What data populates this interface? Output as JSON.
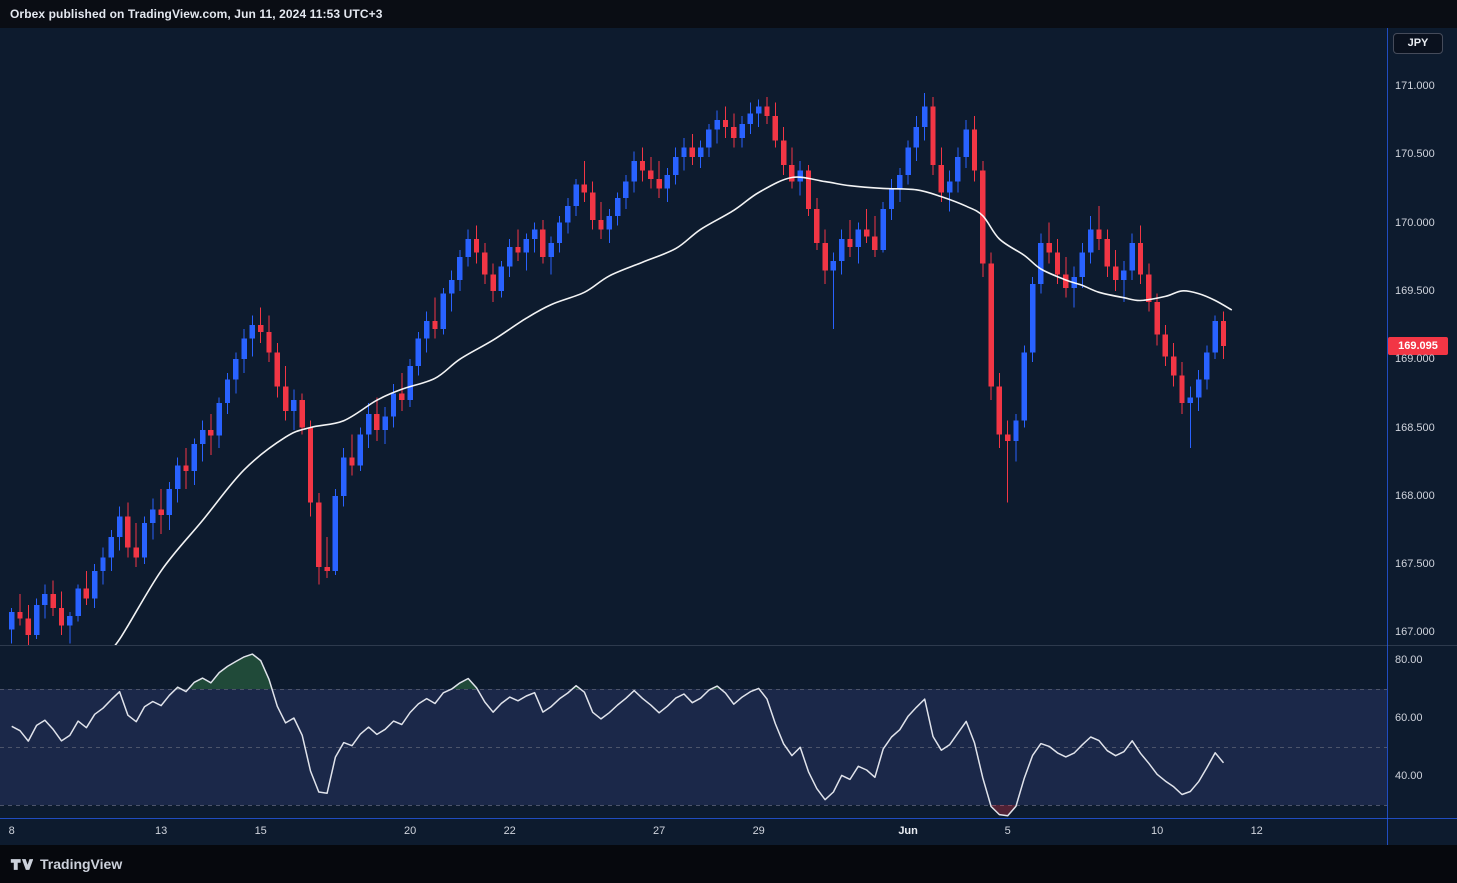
{
  "banner": {
    "text": "Orbex published on TradingView.com, Jun 11, 2024 11:53 UTC+3"
  },
  "ui": {
    "currency_badge": "JPY",
    "last_price_label": "169.095",
    "attribution_brand": "TradingView"
  },
  "colors": {
    "background": "#0d1b2e",
    "up": "#2962ff",
    "down": "#f23645",
    "ma": "#ffffff",
    "rsi": "#e0e3eb",
    "accent_line": "#2962ff",
    "price_badge": "#f23645",
    "band": "rgba(122,134,255,0.13)",
    "dashed": "#4c546a",
    "overbought_fill": "rgba(76,175,80,0.32)",
    "oversold_fill": "rgba(242,54,69,0.30)"
  },
  "chart_data": [
    {
      "type": "candlestick",
      "name": "price",
      "currency": "JPY",
      "last_price": 169.095,
      "ylim": [
        166.9,
        171.35
      ],
      "grid": false,
      "y_axis": {
        "labels": [
          {
            "text": "171.000",
            "value": 171.0
          },
          {
            "text": "170.500",
            "value": 170.5
          },
          {
            "text": "170.000",
            "value": 170.0
          },
          {
            "text": "169.500",
            "value": 169.5
          },
          {
            "text": "169.000",
            "value": 169.0
          },
          {
            "text": "168.500",
            "value": 168.5
          },
          {
            "text": "168.000",
            "value": 168.0
          },
          {
            "text": "167.500",
            "value": 167.5
          },
          {
            "text": "167.000",
            "value": 167.0
          }
        ]
      },
      "x_axis": {
        "labels": [
          {
            "text": "8",
            "index": 0,
            "bold": false
          },
          {
            "text": "13",
            "index": 18,
            "bold": false
          },
          {
            "text": "15",
            "index": 30,
            "bold": false
          },
          {
            "text": "20",
            "index": 48,
            "bold": false
          },
          {
            "text": "22",
            "index": 60,
            "bold": false
          },
          {
            "text": "27",
            "index": 78,
            "bold": false
          },
          {
            "text": "29",
            "index": 90,
            "bold": false
          },
          {
            "text": "Jun",
            "index": 108,
            "bold": true
          },
          {
            "text": "5",
            "index": 120,
            "bold": false
          },
          {
            "text": "10",
            "index": 138,
            "bold": false
          },
          {
            "text": "12",
            "index": 150,
            "bold": false
          }
        ]
      },
      "candles": [
        [
          167.02,
          167.18,
          166.92,
          167.15
        ],
        [
          167.15,
          167.28,
          167.05,
          167.1
        ],
        [
          167.1,
          167.2,
          166.9,
          166.98
        ],
        [
          166.98,
          167.25,
          166.95,
          167.2
        ],
        [
          167.2,
          167.35,
          167.1,
          167.28
        ],
        [
          167.28,
          167.38,
          167.12,
          167.18
        ],
        [
          167.18,
          167.3,
          166.98,
          167.05
        ],
        [
          167.05,
          167.15,
          166.92,
          167.12
        ],
        [
          167.12,
          167.35,
          167.08,
          167.32
        ],
        [
          167.32,
          167.45,
          167.2,
          167.25
        ],
        [
          167.25,
          167.5,
          167.18,
          167.45
        ],
        [
          167.45,
          167.62,
          167.35,
          167.55
        ],
        [
          167.55,
          167.75,
          167.45,
          167.7
        ],
        [
          167.7,
          167.92,
          167.6,
          167.85
        ],
        [
          167.85,
          167.95,
          167.55,
          167.62
        ],
        [
          167.62,
          167.8,
          167.48,
          167.55
        ],
        [
          167.55,
          167.85,
          167.5,
          167.8
        ],
        [
          167.8,
          167.98,
          167.68,
          167.9
        ],
        [
          167.9,
          168.05,
          167.72,
          167.86
        ],
        [
          167.86,
          168.1,
          167.75,
          168.05
        ],
        [
          168.05,
          168.28,
          167.95,
          168.22
        ],
        [
          168.22,
          168.35,
          168.05,
          168.18
        ],
        [
          168.18,
          168.42,
          168.08,
          168.38
        ],
        [
          168.38,
          168.55,
          168.25,
          168.48
        ],
        [
          168.48,
          168.6,
          168.3,
          168.44
        ],
        [
          168.44,
          168.72,
          168.35,
          168.68
        ],
        [
          168.68,
          168.9,
          168.6,
          168.85
        ],
        [
          168.85,
          169.05,
          168.75,
          169.0
        ],
        [
          169.0,
          169.22,
          168.9,
          169.15
        ],
        [
          169.15,
          169.32,
          169.02,
          169.25
        ],
        [
          169.25,
          169.38,
          169.12,
          169.2
        ],
        [
          169.2,
          169.32,
          168.98,
          169.05
        ],
        [
          169.05,
          169.12,
          168.72,
          168.8
        ],
        [
          168.8,
          168.95,
          168.55,
          168.62
        ],
        [
          168.62,
          168.78,
          168.48,
          168.7
        ],
        [
          168.7,
          168.75,
          168.45,
          168.5
        ],
        [
          168.5,
          168.55,
          167.85,
          167.95
        ],
        [
          167.95,
          168.02,
          167.35,
          167.48
        ],
        [
          167.48,
          167.7,
          167.4,
          167.45
        ],
        [
          167.45,
          168.05,
          167.42,
          168.0
        ],
        [
          168.0,
          168.35,
          167.92,
          168.28
        ],
        [
          168.28,
          168.45,
          168.15,
          168.22
        ],
        [
          168.22,
          168.5,
          168.18,
          168.45
        ],
        [
          168.45,
          168.68,
          168.35,
          168.6
        ],
        [
          168.6,
          168.72,
          168.4,
          168.48
        ],
        [
          168.48,
          168.65,
          168.38,
          168.58
        ],
        [
          168.58,
          168.82,
          168.5,
          168.75
        ],
        [
          168.75,
          168.9,
          168.62,
          168.7
        ],
        [
          168.7,
          169.0,
          168.65,
          168.95
        ],
        [
          168.95,
          169.2,
          168.88,
          169.15
        ],
        [
          169.15,
          169.35,
          169.05,
          169.28
        ],
        [
          169.28,
          169.45,
          169.15,
          169.22
        ],
        [
          169.22,
          169.52,
          169.18,
          169.48
        ],
        [
          169.48,
          169.65,
          169.35,
          169.58
        ],
        [
          169.58,
          169.8,
          169.5,
          169.75
        ],
        [
          169.75,
          169.95,
          169.68,
          169.88
        ],
        [
          169.88,
          169.98,
          169.7,
          169.78
        ],
        [
          169.78,
          169.85,
          169.55,
          169.62
        ],
        [
          169.62,
          169.7,
          169.42,
          169.5
        ],
        [
          169.5,
          169.72,
          169.45,
          169.68
        ],
        [
          169.68,
          169.88,
          169.6,
          169.82
        ],
        [
          169.82,
          169.95,
          169.72,
          169.78
        ],
        [
          169.78,
          169.92,
          169.65,
          169.88
        ],
        [
          169.88,
          170.0,
          169.78,
          169.95
        ],
        [
          169.95,
          170.02,
          169.7,
          169.75
        ],
        [
          169.75,
          169.9,
          169.62,
          169.85
        ],
        [
          169.85,
          170.05,
          169.78,
          170.0
        ],
        [
          170.0,
          170.18,
          169.92,
          170.12
        ],
        [
          170.12,
          170.32,
          170.05,
          170.28
        ],
        [
          170.28,
          170.45,
          170.15,
          170.22
        ],
        [
          170.22,
          170.3,
          169.95,
          170.02
        ],
        [
          170.02,
          170.15,
          169.88,
          169.95
        ],
        [
          169.95,
          170.1,
          169.85,
          170.05
        ],
        [
          170.05,
          170.22,
          169.98,
          170.18
        ],
        [
          170.18,
          170.35,
          170.1,
          170.3
        ],
        [
          170.3,
          170.52,
          170.22,
          170.45
        ],
        [
          170.45,
          170.55,
          170.3,
          170.38
        ],
        [
          170.38,
          170.48,
          170.25,
          170.32
        ],
        [
          170.32,
          170.45,
          170.18,
          170.25
        ],
        [
          170.25,
          170.4,
          170.15,
          170.35
        ],
        [
          170.35,
          170.55,
          170.28,
          170.48
        ],
        [
          170.48,
          170.62,
          170.38,
          170.55
        ],
        [
          170.55,
          170.65,
          170.42,
          170.48
        ],
        [
          170.48,
          170.6,
          170.4,
          170.55
        ],
        [
          170.55,
          170.72,
          170.48,
          170.68
        ],
        [
          170.68,
          170.82,
          170.58,
          170.75
        ],
        [
          170.75,
          170.85,
          170.62,
          170.7
        ],
        [
          170.7,
          170.8,
          170.55,
          170.62
        ],
        [
          170.62,
          170.78,
          170.55,
          170.72
        ],
        [
          170.72,
          170.88,
          170.65,
          170.8
        ],
        [
          170.8,
          170.9,
          170.7,
          170.85
        ],
        [
          170.85,
          170.92,
          170.72,
          170.78
        ],
        [
          170.78,
          170.88,
          170.55,
          170.6
        ],
        [
          170.6,
          170.7,
          170.35,
          170.42
        ],
        [
          170.42,
          170.55,
          170.25,
          170.3
        ],
        [
          170.3,
          170.45,
          170.2,
          170.38
        ],
        [
          170.38,
          170.42,
          170.05,
          170.1
        ],
        [
          170.1,
          170.18,
          169.8,
          169.85
        ],
        [
          169.85,
          169.95,
          169.55,
          169.65
        ],
        [
          169.65,
          169.78,
          169.22,
          169.72
        ],
        [
          169.72,
          169.95,
          169.62,
          169.88
        ],
        [
          169.88,
          170.02,
          169.75,
          169.82
        ],
        [
          169.82,
          170.0,
          169.7,
          169.95
        ],
        [
          169.95,
          170.1,
          169.85,
          169.9
        ],
        [
          169.9,
          170.05,
          169.75,
          169.8
        ],
        [
          169.8,
          170.15,
          169.78,
          170.1
        ],
        [
          170.1,
          170.32,
          170.02,
          170.25
        ],
        [
          170.25,
          170.4,
          170.15,
          170.35
        ],
        [
          170.35,
          170.6,
          170.28,
          170.55
        ],
        [
          170.55,
          170.78,
          170.45,
          170.7
        ],
        [
          170.7,
          170.95,
          170.6,
          170.85
        ],
        [
          170.85,
          170.92,
          170.35,
          170.42
        ],
        [
          170.42,
          170.55,
          170.15,
          170.22
        ],
        [
          170.22,
          170.38,
          170.08,
          170.3
        ],
        [
          170.3,
          170.55,
          170.22,
          170.48
        ],
        [
          170.48,
          170.75,
          170.4,
          170.68
        ],
        [
          170.68,
          170.78,
          170.3,
          170.38
        ],
        [
          170.38,
          170.45,
          169.6,
          169.7
        ],
        [
          169.7,
          169.78,
          168.7,
          168.8
        ],
        [
          168.8,
          168.9,
          168.35,
          168.45
        ],
        [
          168.45,
          168.55,
          167.95,
          168.4
        ],
        [
          168.4,
          168.6,
          168.25,
          168.55
        ],
        [
          168.55,
          169.1,
          168.5,
          169.05
        ],
        [
          169.05,
          169.6,
          168.98,
          169.55
        ],
        [
          169.55,
          169.92,
          169.48,
          169.85
        ],
        [
          169.85,
          170.0,
          169.7,
          169.78
        ],
        [
          169.78,
          169.88,
          169.55,
          169.62
        ],
        [
          169.62,
          169.75,
          169.45,
          169.52
        ],
        [
          169.52,
          169.68,
          169.38,
          169.6
        ],
        [
          169.6,
          169.85,
          169.52,
          169.78
        ],
        [
          169.78,
          170.05,
          169.7,
          169.95
        ],
        [
          169.95,
          170.12,
          169.8,
          169.88
        ],
        [
          169.88,
          169.95,
          169.6,
          169.68
        ],
        [
          169.68,
          169.8,
          169.5,
          169.58
        ],
        [
          169.58,
          169.72,
          169.42,
          169.65
        ],
        [
          169.65,
          169.92,
          169.58,
          169.85
        ],
        [
          169.85,
          169.98,
          169.55,
          169.62
        ],
        [
          169.62,
          169.7,
          169.35,
          169.42
        ],
        [
          169.42,
          169.48,
          169.1,
          169.18
        ],
        [
          169.18,
          169.25,
          168.95,
          169.02
        ],
        [
          169.02,
          169.12,
          168.8,
          168.88
        ],
        [
          168.88,
          168.98,
          168.6,
          168.68
        ],
        [
          168.68,
          168.8,
          168.35,
          168.72
        ],
        [
          168.72,
          168.92,
          168.62,
          168.85
        ],
        [
          168.85,
          169.1,
          168.78,
          169.05
        ],
        [
          169.05,
          169.32,
          169.0,
          169.28
        ],
        [
          169.28,
          169.35,
          169.0,
          169.095
        ]
      ],
      "ma_line": {
        "name": "moving-average-white",
        "points": [
          [
            11,
            166.82
          ],
          [
            13,
            166.95
          ],
          [
            18,
            167.45
          ],
          [
            23,
            167.82
          ],
          [
            28,
            168.19
          ],
          [
            33,
            168.43
          ],
          [
            36,
            168.5
          ],
          [
            40,
            168.55
          ],
          [
            44,
            168.7
          ],
          [
            47,
            168.78
          ],
          [
            51,
            168.86
          ],
          [
            54,
            169.0
          ],
          [
            58,
            169.14
          ],
          [
            62,
            169.3
          ],
          [
            65,
            169.4
          ],
          [
            69,
            169.49
          ],
          [
            72,
            169.61
          ],
          [
            76,
            169.71
          ],
          [
            80,
            169.81
          ],
          [
            83,
            169.95
          ],
          [
            87,
            170.09
          ],
          [
            90,
            170.22
          ],
          [
            94,
            170.33
          ],
          [
            98,
            170.3
          ],
          [
            101,
            170.27
          ],
          [
            105,
            170.25
          ],
          [
            109,
            170.24
          ],
          [
            112,
            170.19
          ],
          [
            115,
            170.12
          ],
          [
            117,
            170.05
          ],
          [
            119,
            169.88
          ],
          [
            122,
            169.76
          ],
          [
            124,
            169.66
          ],
          [
            127,
            169.58
          ],
          [
            129,
            169.54
          ],
          [
            131,
            169.49
          ],
          [
            134,
            169.45
          ],
          [
            136,
            169.43
          ],
          [
            139,
            169.46
          ],
          [
            141,
            169.5
          ],
          [
            143,
            169.48
          ],
          [
            145,
            169.43
          ],
          [
            147,
            169.36
          ]
        ]
      }
    },
    {
      "type": "line",
      "name": "RSI",
      "period": 14,
      "derived_from": "price.closes",
      "levels": {
        "overbought": 70,
        "middle": 50,
        "oversold": 30
      },
      "ylim": [
        25.5,
        84.8
      ],
      "y_axis": {
        "labels": [
          {
            "text": "80.00",
            "value": 80
          },
          {
            "text": "60.00",
            "value": 60
          },
          {
            "text": "40.00",
            "value": 40
          }
        ]
      }
    }
  ]
}
